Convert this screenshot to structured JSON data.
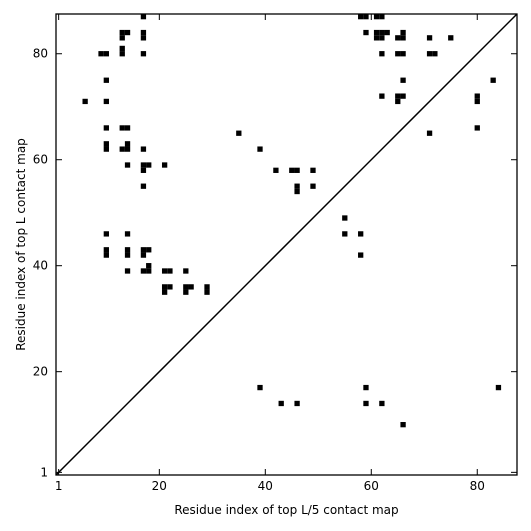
{
  "chart_data": {
    "type": "scatter",
    "title": "",
    "xlabel": "Residue index of top L/5 contact map",
    "ylabel": "Residue index of top L contact map",
    "xlim": [
      0.5,
      87.5
    ],
    "ylim": [
      0.5,
      87.5
    ],
    "xticks": [
      1,
      20,
      40,
      60,
      80
    ],
    "yticks": [
      1,
      20,
      40,
      60,
      80
    ],
    "xticklabels": [
      "1",
      "20",
      "40",
      "60",
      "80"
    ],
    "yticklabels": [
      "1",
      "20",
      "40",
      "60",
      "80"
    ],
    "grid": false,
    "legend": "none",
    "marker": "square",
    "marker_color": "#000000",
    "diagonal_line": true,
    "points_upper": [
      [
        17,
        87
      ],
      [
        58,
        87
      ],
      [
        59,
        87
      ],
      [
        61,
        87
      ],
      [
        62,
        87
      ],
      [
        13,
        84
      ],
      [
        14,
        84
      ],
      [
        17,
        84
      ],
      [
        59,
        84
      ],
      [
        61,
        84
      ],
      [
        62,
        84
      ],
      [
        63,
        84
      ],
      [
        66,
        84
      ],
      [
        13,
        83
      ],
      [
        17,
        83
      ],
      [
        61,
        83
      ],
      [
        62,
        83
      ],
      [
        65,
        83
      ],
      [
        66,
        83
      ],
      [
        71,
        83
      ],
      [
        75,
        83
      ],
      [
        13,
        81
      ],
      [
        9,
        80
      ],
      [
        10,
        80
      ],
      [
        13,
        80
      ],
      [
        17,
        80
      ],
      [
        62,
        80
      ],
      [
        65,
        80
      ],
      [
        66,
        80
      ],
      [
        71,
        80
      ],
      [
        72,
        80
      ],
      [
        10,
        75
      ],
      [
        66,
        75
      ],
      [
        83,
        75
      ],
      [
        62,
        72
      ],
      [
        65,
        72
      ],
      [
        66,
        72
      ],
      [
        80,
        72
      ],
      [
        6,
        71
      ],
      [
        10,
        71
      ],
      [
        65,
        71
      ],
      [
        80,
        71
      ],
      [
        10,
        66
      ],
      [
        13,
        66
      ],
      [
        14,
        66
      ],
      [
        80,
        66
      ],
      [
        35,
        65
      ],
      [
        71,
        65
      ],
      [
        10,
        63
      ],
      [
        14,
        63
      ],
      [
        10,
        62
      ],
      [
        13,
        62
      ],
      [
        14,
        62
      ],
      [
        17,
        62
      ],
      [
        39,
        62
      ],
      [
        14,
        59
      ],
      [
        17,
        59
      ],
      [
        18,
        59
      ],
      [
        21,
        59
      ],
      [
        17,
        58
      ],
      [
        42,
        58
      ],
      [
        45,
        58
      ],
      [
        46,
        58
      ],
      [
        49,
        58
      ],
      [
        17,
        55
      ],
      [
        46,
        55
      ],
      [
        49,
        55
      ],
      [
        46,
        54
      ],
      [
        55,
        49
      ],
      [
        10,
        46
      ],
      [
        14,
        46
      ],
      [
        55,
        46
      ],
      [
        58,
        46
      ],
      [
        10,
        43
      ],
      [
        14,
        43
      ],
      [
        17,
        43
      ],
      [
        18,
        43
      ],
      [
        10,
        42
      ],
      [
        14,
        42
      ],
      [
        17,
        42
      ],
      [
        58,
        42
      ],
      [
        18,
        40
      ],
      [
        14,
        39
      ],
      [
        17,
        39
      ],
      [
        18,
        39
      ],
      [
        21,
        39
      ],
      [
        22,
        39
      ],
      [
        25,
        39
      ],
      [
        21,
        36
      ],
      [
        22,
        36
      ],
      [
        25,
        36
      ],
      [
        26,
        36
      ],
      [
        29,
        36
      ],
      [
        21,
        35
      ],
      [
        25,
        35
      ],
      [
        29,
        35
      ]
    ],
    "points_lower": [
      [
        39,
        17
      ],
      [
        59,
        17
      ],
      [
        84,
        17
      ],
      [
        43,
        14
      ],
      [
        46,
        14
      ],
      [
        59,
        14
      ],
      [
        62,
        14
      ],
      [
        66,
        10
      ]
    ]
  }
}
